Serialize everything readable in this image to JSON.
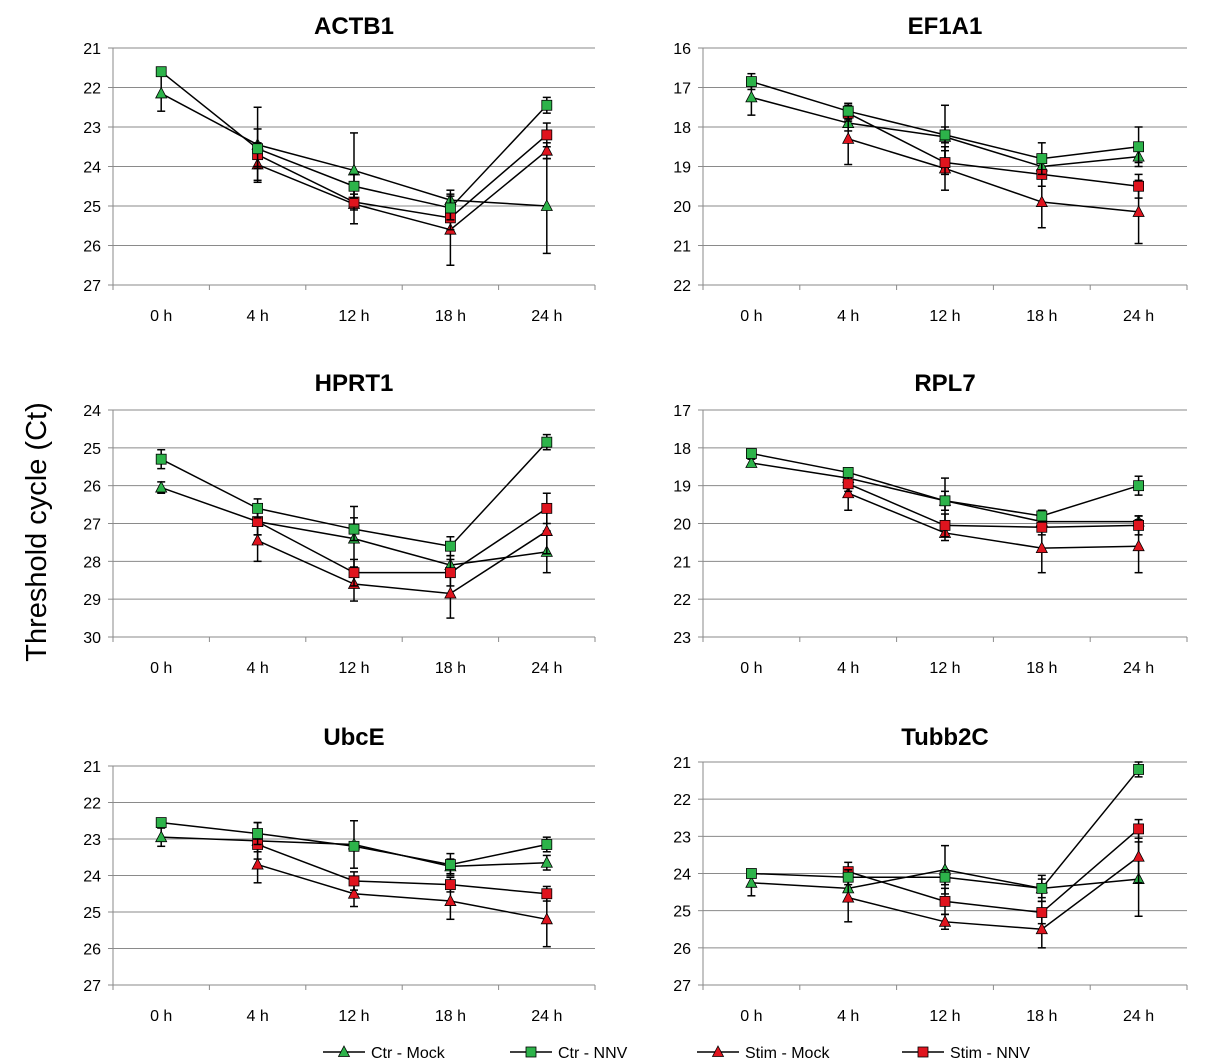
{
  "figure": {
    "ylabel": "Threshold cycle (Ct)",
    "legend": [
      {
        "name": "Ctr - Mock",
        "color": "#2db34a",
        "marker": "triangle"
      },
      {
        "name": "Ctr - NNV",
        "color": "#2db34a",
        "marker": "square"
      },
      {
        "name": "Stim - Mock",
        "color": "#e0141e",
        "marker": "triangle"
      },
      {
        "name": "Stim - NNV",
        "color": "#e0141e",
        "marker": "square"
      }
    ]
  },
  "chart_data": [
    {
      "type": "line",
      "title": "ACTB1",
      "categories": [
        "0 h",
        "4 h",
        "12 h",
        "18 h",
        "24 h"
      ],
      "ylim": [
        21,
        27
      ],
      "yaxis_inverted": true,
      "grid": true,
      "series": [
        {
          "name": "Ctr - Mock",
          "values": [
            22.15,
            23.45,
            24.1,
            24.85,
            25.0
          ],
          "errors": [
            0.45,
            0.95,
            0.95,
            0.25,
            1.2
          ]
        },
        {
          "name": "Ctr - NNV",
          "values": [
            21.6,
            23.55,
            24.5,
            25.05,
            22.45
          ],
          "errors": [
            0.1,
            0.5,
            0.3,
            0.3,
            0.2
          ]
        },
        {
          "name": "Stim - Mock",
          "values": [
            null,
            23.95,
            24.95,
            25.6,
            23.6
          ],
          "errors": [
            null,
            0.4,
            0.5,
            0.9,
            0.2
          ]
        },
        {
          "name": "Stim - NNV",
          "values": [
            null,
            23.7,
            24.9,
            25.3,
            23.2
          ],
          "errors": [
            null,
            0.3,
            0.2,
            0.3,
            0.3
          ]
        }
      ]
    },
    {
      "type": "line",
      "title": "EF1A1",
      "categories": [
        "0 h",
        "4 h",
        "12 h",
        "18 h",
        "24 h"
      ],
      "ylim": [
        16,
        22
      ],
      "yaxis_inverted": true,
      "grid": true,
      "series": [
        {
          "name": "Ctr - Mock",
          "values": [
            17.25,
            17.9,
            18.25,
            19.0,
            18.75
          ],
          "errors": [
            0.45,
            0.2,
            0.8,
            0.2,
            0.15
          ]
        },
        {
          "name": "Ctr - NNV",
          "values": [
            16.85,
            17.6,
            18.2,
            18.8,
            18.5
          ],
          "errors": [
            0.2,
            0.2,
            0.2,
            0.4,
            0.5
          ]
        },
        {
          "name": "Stim - Mock",
          "values": [
            null,
            18.3,
            19.05,
            19.9,
            20.15
          ],
          "errors": [
            null,
            0.65,
            0.55,
            0.65,
            0.8
          ]
        },
        {
          "name": "Stim - NNV",
          "values": [
            null,
            17.65,
            18.9,
            19.2,
            19.5
          ],
          "errors": [
            null,
            0.2,
            0.3,
            0.3,
            0.3
          ]
        }
      ]
    },
    {
      "type": "line",
      "title": "HPRT1",
      "categories": [
        "0 h",
        "4 h",
        "12 h",
        "18 h",
        "24 h"
      ],
      "ylim": [
        24,
        30
      ],
      "yaxis_inverted": true,
      "grid": true,
      "series": [
        {
          "name": "Ctr - Mock",
          "values": [
            26.05,
            26.95,
            27.4,
            28.1,
            27.75
          ],
          "errors": [
            0.15,
            0.35,
            0.85,
            0.25,
            0.55
          ]
        },
        {
          "name": "Ctr - NNV",
          "values": [
            25.3,
            26.6,
            27.15,
            27.6,
            24.85
          ],
          "errors": [
            0.25,
            0.25,
            0.3,
            0.25,
            0.2
          ]
        },
        {
          "name": "Stim - Mock",
          "values": [
            null,
            27.45,
            28.6,
            28.85,
            27.2
          ],
          "errors": [
            null,
            0.55,
            0.45,
            0.65,
            0.6
          ]
        },
        {
          "name": "Stim - NNV",
          "values": [
            null,
            26.95,
            28.3,
            28.3,
            26.6
          ],
          "errors": [
            null,
            0.35,
            0.35,
            0.35,
            0.4
          ]
        }
      ]
    },
    {
      "type": "line",
      "title": "RPL7",
      "categories": [
        "0 h",
        "4 h",
        "12 h",
        "18 h",
        "24 h"
      ],
      "ylim": [
        17,
        23
      ],
      "yaxis_inverted": true,
      "grid": true,
      "series": [
        {
          "name": "Ctr - Mock",
          "values": [
            18.4,
            18.8,
            19.4,
            19.95,
            19.95
          ],
          "errors": [
            0.1,
            0.15,
            0.6,
            0.15,
            0.15
          ]
        },
        {
          "name": "Ctr - NNV",
          "values": [
            18.15,
            18.65,
            19.4,
            19.8,
            19.0
          ],
          "errors": [
            0.1,
            0.1,
            0.25,
            0.15,
            0.25
          ]
        },
        {
          "name": "Stim - Mock",
          "values": [
            null,
            19.2,
            20.25,
            20.65,
            20.6
          ],
          "errors": [
            null,
            0.45,
            0.2,
            0.65,
            0.7
          ]
        },
        {
          "name": "Stim - NNV",
          "values": [
            null,
            18.95,
            20.05,
            20.1,
            20.05
          ],
          "errors": [
            null,
            0.2,
            0.3,
            0.2,
            0.25
          ]
        }
      ]
    },
    {
      "type": "line",
      "title": "UbcE",
      "categories": [
        "0 h",
        "4 h",
        "12 h",
        "18 h",
        "24 h"
      ],
      "ylim": [
        21,
        27
      ],
      "yaxis_inverted": true,
      "grid": true,
      "series": [
        {
          "name": "Ctr - Mock",
          "values": [
            22.95,
            23.05,
            23.15,
            23.75,
            23.65
          ],
          "errors": [
            0.25,
            0.5,
            0.65,
            0.2,
            0.2
          ]
        },
        {
          "name": "Ctr - NNV",
          "values": [
            22.55,
            22.85,
            23.2,
            23.7,
            23.15
          ],
          "errors": [
            0.1,
            0.3,
            0.1,
            0.3,
            0.2
          ]
        },
        {
          "name": "Stim - Mock",
          "values": [
            null,
            23.7,
            24.5,
            24.7,
            25.2
          ],
          "errors": [
            null,
            0.5,
            0.35,
            0.5,
            0.75
          ]
        },
        {
          "name": "Stim - NNV",
          "values": [
            null,
            23.15,
            24.15,
            24.25,
            24.5
          ],
          "errors": [
            null,
            0.2,
            0.25,
            0.2,
            0.2
          ]
        }
      ]
    },
    {
      "type": "line",
      "title": "Tubb2C",
      "categories": [
        "0 h",
        "4 h",
        "12 h",
        "18 h",
        "24 h"
      ],
      "ylim": [
        21,
        27
      ],
      "yaxis_inverted": true,
      "grid": true,
      "series": [
        {
          "name": "Ctr - Mock",
          "values": [
            24.25,
            24.4,
            23.9,
            24.4,
            24.15
          ],
          "errors": [
            0.35,
            0.3,
            0.65,
            0.35,
            1.0
          ]
        },
        {
          "name": "Ctr - NNV",
          "values": [
            24.0,
            24.1,
            24.1,
            24.4,
            21.2
          ],
          "errors": [
            0.1,
            0.2,
            0.2,
            0.25,
            0.2
          ]
        },
        {
          "name": "Stim - Mock",
          "values": [
            null,
            24.65,
            25.3,
            25.5,
            23.55
          ],
          "errors": [
            null,
            0.65,
            0.2,
            0.5,
            0.7
          ]
        },
        {
          "name": "Stim - NNV",
          "values": [
            null,
            23.95,
            24.75,
            25.05,
            22.8
          ],
          "errors": [
            null,
            0.25,
            0.35,
            0.3,
            0.25
          ]
        }
      ]
    }
  ]
}
